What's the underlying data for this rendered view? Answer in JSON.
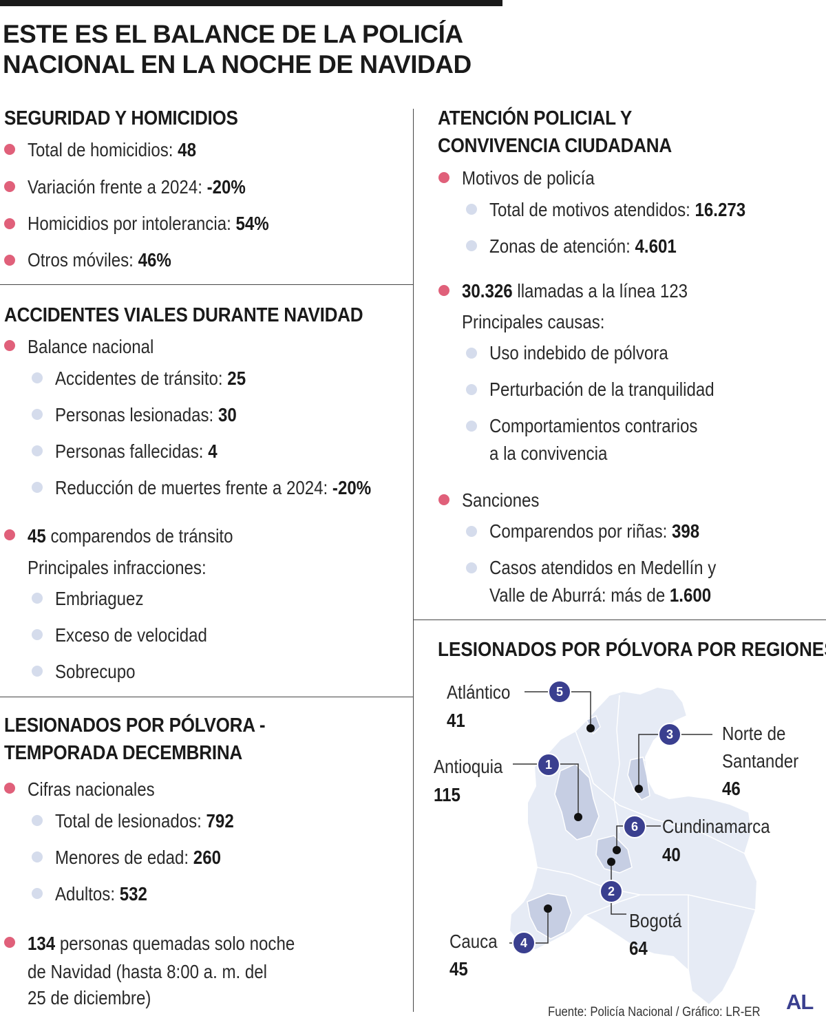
{
  "title": {
    "line1": "ESTE ES EL BALANCE DE LA POLICÍA",
    "line2": "NACIONAL EN LA NOCHE DE NAVIDAD"
  },
  "seguridad": {
    "title": "SEGURIDAD Y HOMICIDIOS",
    "items": [
      {
        "label": "Total de homicidios: ",
        "value": "48"
      },
      {
        "label": "Variación frente a 2024: ",
        "value": "-20%"
      },
      {
        "label": "Homicidios por intolerancia: ",
        "value": "54%"
      },
      {
        "label": "Otros móviles: ",
        "value": "46%"
      }
    ]
  },
  "accidentes": {
    "title": "ACCIDENTES VIALES DURANTE NAVIDAD",
    "balance_label": "Balance nacional",
    "sub": [
      {
        "label": "Accidentes de tránsito: ",
        "value": "25"
      },
      {
        "label": "Personas lesionadas: ",
        "value": "30"
      },
      {
        "label": "Personas fallecidas: ",
        "value": "4"
      },
      {
        "label": "Reducción de muertes frente a 2024: ",
        "value": "-20%"
      }
    ],
    "comparendos_value": "45",
    "comparendos_label": " comparendos de tránsito",
    "infracciones_label": "Principales infracciones:",
    "infracciones": [
      "Embriaguez",
      "Exceso de velocidad",
      "Sobrecupo"
    ]
  },
  "polvora": {
    "title_line1": "LESIONADOS POR PÓLVORA -",
    "title_line2": "TEMPORADA DECEMBRINA",
    "cifras_label": "Cifras nacionales",
    "sub": [
      {
        "label": "Total de lesionados: ",
        "value": "792"
      },
      {
        "label": "Menores de edad: ",
        "value": "260"
      },
      {
        "label": "Adultos: ",
        "value": "532"
      }
    ],
    "quemadas_value": "134",
    "quemadas_line1": " personas quemadas solo noche",
    "quemadas_line2": "de Navidad (hasta 8:00 a. m. del",
    "quemadas_line3": "25 de diciembre)"
  },
  "atencion": {
    "title_line1": "ATENCIÓN POLICIAL Y",
    "title_line2": "CONVIVENCIA CIUDADANA",
    "motivos_label": "Motivos de policía",
    "motivos_sub": [
      {
        "label": "Total de motivos atendidos: ",
        "value": "16.273"
      },
      {
        "label": "Zonas de atención: ",
        "value": "4.601"
      }
    ],
    "llamadas_value": "30.326",
    "llamadas_label": " llamadas a la línea 123",
    "causas_label": "Principales causas:",
    "causas": [
      "Uso indebido de pólvora",
      "Perturbación de la tranquilidad"
    ],
    "causa3_line1": "Comportamientos contrarios",
    "causa3_line2": "a la convivencia",
    "sanciones_label": "Sanciones",
    "rinas_label": "Comparendos por riñas: ",
    "rinas_value": "398",
    "casos_line1": "Casos atendidos en Medellín y",
    "casos_line2": "Valle de Aburrá: más de ",
    "casos_value": "1.600"
  },
  "mapa": {
    "title": "LESIONADOS POR PÓLVORA POR REGIONES",
    "regions": [
      {
        "rank": "1",
        "name": "Antioquia",
        "value": 115
      },
      {
        "rank": "2",
        "name": "Bogotá",
        "value": 64
      },
      {
        "rank": "3",
        "name_line1": "Norte de",
        "name_line2": "Santander",
        "value": 46
      },
      {
        "rank": "4",
        "name": "Cauca",
        "value": 45
      },
      {
        "rank": "5",
        "name": "Atlántico",
        "value": 41
      },
      {
        "rank": "6",
        "name": "Cundinamarca",
        "value": 40
      }
    ],
    "map_fill": "#e6ebf5",
    "highlight_fill": "#c6cee3",
    "badge_color": "#3a3f8f"
  },
  "footer": {
    "source": "Fuente: Policía Nacional / Gráfico: LR-ER",
    "logo": "AL"
  },
  "colors": {
    "pink_bullet": "#e0607a",
    "blue_bullet": "#d5dcec"
  }
}
